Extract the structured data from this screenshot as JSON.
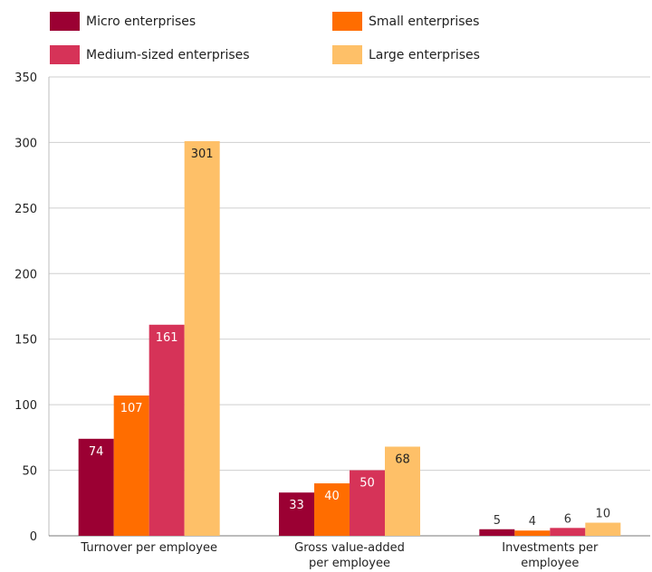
{
  "chart_data": {
    "type": "bar",
    "categories": [
      [
        "Turnover per employee"
      ],
      [
        "Gross value-added",
        "per employee"
      ],
      [
        "Investments per",
        "employee"
      ]
    ],
    "series": [
      {
        "name": "Micro enterprises",
        "color": "#9b0033",
        "values": [
          74,
          33,
          5
        ]
      },
      {
        "name": "Small enterprises",
        "color": "#ff6d00",
        "values": [
          107,
          40,
          4
        ]
      },
      {
        "name": "Medium-sized enterprises",
        "color": "#d63358",
        "values": [
          161,
          50,
          6
        ]
      },
      {
        "name": "Large enterprises",
        "color": "#fec068",
        "values": [
          301,
          68,
          10
        ]
      }
    ],
    "y_ticks": [
      0,
      50,
      100,
      150,
      200,
      250,
      300,
      350
    ],
    "ylim": [
      0,
      350
    ],
    "grid": true,
    "legend_position": "top"
  }
}
